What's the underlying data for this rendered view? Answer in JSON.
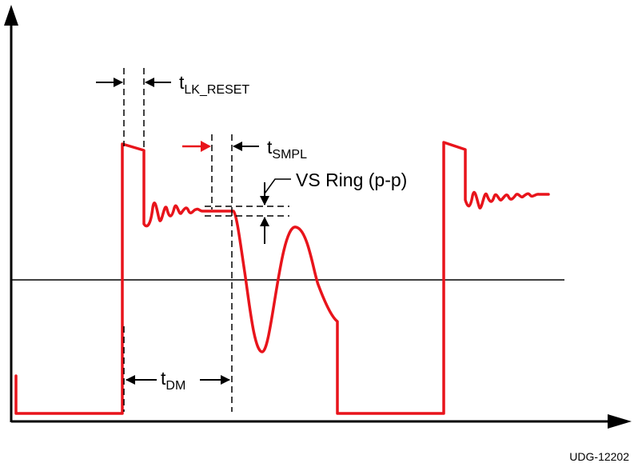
{
  "labels": {
    "t_lk_reset": {
      "main": "t",
      "sub": "LK_RESET"
    },
    "t_smpl": {
      "main": "t",
      "sub": "SMPL"
    },
    "vs_ring": "VS Ring (p-p)",
    "t_dm": {
      "main": "t",
      "sub": "DM"
    },
    "figure_id": "UDG-12202"
  },
  "colors": {
    "waveform": "#e8141b",
    "lines": "#000000",
    "highlight_arrow": "#e8141b"
  }
}
